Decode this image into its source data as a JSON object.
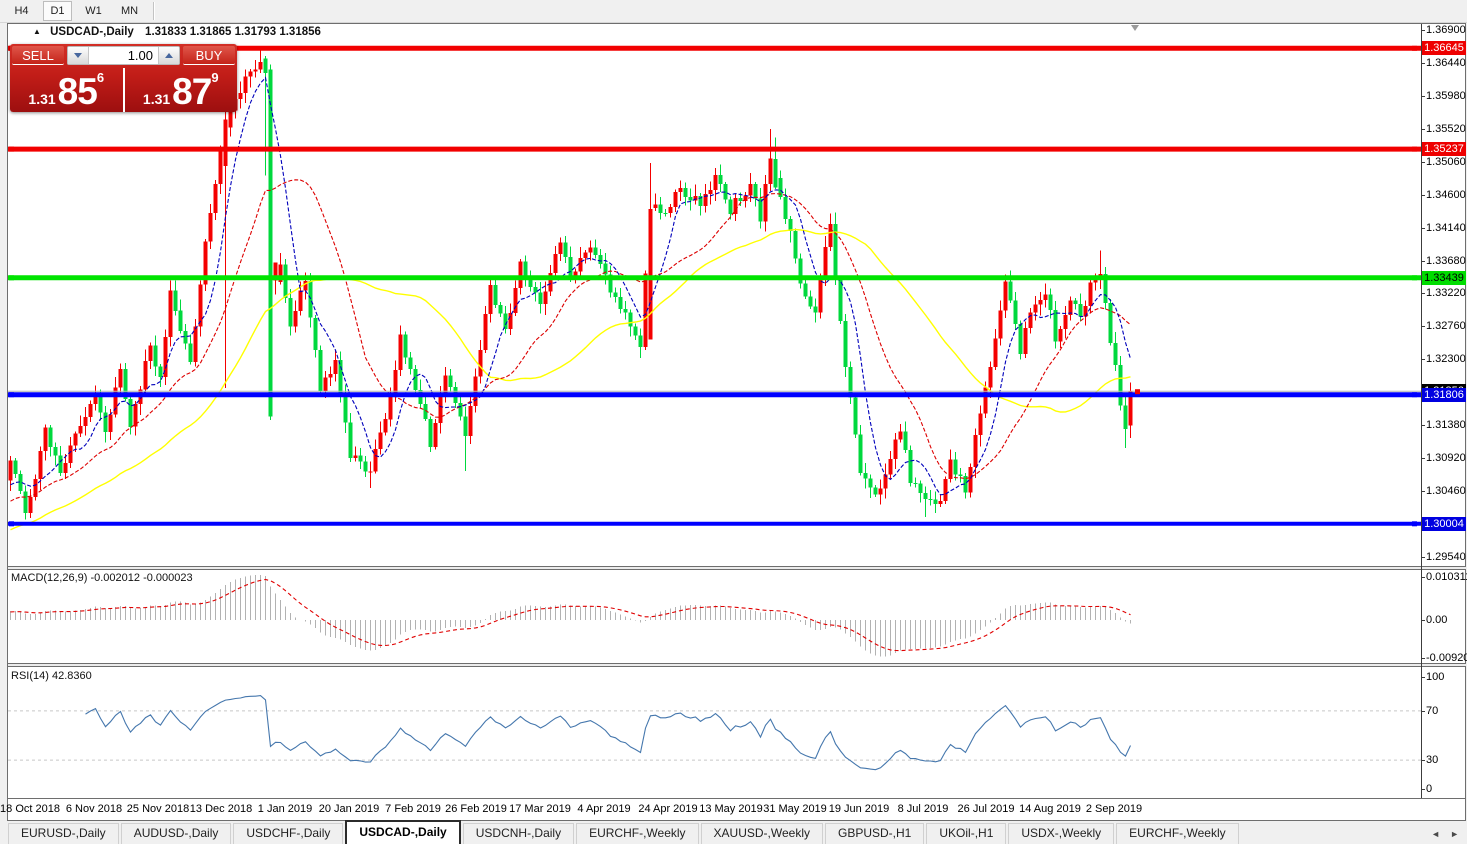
{
  "toolbar": {
    "timeframes": [
      "H4",
      "D1",
      "W1",
      "MN"
    ],
    "active": "D1"
  },
  "title": {
    "collapse_icon": "▲",
    "symbol_period": "USDCAD-,Daily",
    "ohlc": "1.31833 1.31865 1.31793 1.31856"
  },
  "trade_panel": {
    "sell_label": "SELL",
    "buy_label": "BUY",
    "volume": "1.00",
    "sell_price": {
      "prefix": "1.31",
      "big": "85",
      "sup": "6"
    },
    "buy_price": {
      "prefix": "1.31",
      "big": "87",
      "sup": "9"
    }
  },
  "price_axis": {
    "ticks": [
      "1.36900",
      "1.36440",
      "1.35980",
      "1.35520",
      "1.35060",
      "1.34600",
      "1.34140",
      "1.33680",
      "1.33220",
      "1.32760",
      "1.32300",
      "1.31380",
      "1.30920",
      "1.30460",
      "1.29540"
    ],
    "badges": [
      {
        "label": "1.36645",
        "bg": "#ee0000",
        "fg": "#ffffff",
        "price": 1.36645
      },
      {
        "label": "1.35237",
        "bg": "#ee0000",
        "fg": "#ffffff",
        "price": 1.35237
      },
      {
        "label": "1.33439",
        "bg": "#00dd00",
        "fg": "#000000",
        "price": 1.33439
      },
      {
        "label": "1.31856",
        "bg": "#000000",
        "fg": "#ffffff",
        "price": 1.31856,
        "behind": true
      },
      {
        "label": "1.31806",
        "bg": "#0000e0",
        "fg": "#ffffff",
        "price": 1.31806
      },
      {
        "label": "1.30004",
        "bg": "#0000e0",
        "fg": "#ffffff",
        "price": 1.30004
      }
    ]
  },
  "chart": {
    "bar_count": 225,
    "colors": {
      "up": "#f40000",
      "down": "#00d83e",
      "ma_fast": "#0000bb",
      "ma_mid": "#dd0000",
      "ma_slow": "#ffff00",
      "hline_red": "#f20000",
      "hline_green": "#00e400",
      "hline_blue": "#0000ff",
      "bid_line": "#b4b4b4",
      "macd_hist": "#b2b2b2",
      "macd_signal": "#e00000",
      "rsi_line": "#4577ad",
      "level_dash": "#c8c8c8",
      "shift_marker": "#9a9a9a"
    },
    "ma_periods": {
      "fast": 7,
      "mid": 20,
      "slow": 45
    },
    "keyframes": [
      [
        0,
        1.3095
      ],
      [
        3,
        1.301
      ],
      [
        7,
        1.313
      ],
      [
        10,
        1.307
      ],
      [
        17,
        1.3185
      ],
      [
        19,
        1.313
      ],
      [
        22,
        1.322
      ],
      [
        24,
        1.314
      ],
      [
        28,
        1.325
      ],
      [
        30,
        1.32
      ],
      [
        32,
        1.332
      ],
      [
        36,
        1.3225
      ],
      [
        39,
        1.34
      ],
      [
        43,
        1.356
      ],
      [
        47,
        1.362
      ],
      [
        50,
        1.365
      ],
      [
        52,
        1.333
      ],
      [
        54,
        1.336
      ],
      [
        56,
        1.327
      ],
      [
        59,
        1.3345
      ],
      [
        62,
        1.319
      ],
      [
        65,
        1.323
      ],
      [
        68,
        1.3095
      ],
      [
        72,
        1.307
      ],
      [
        76,
        1.318
      ],
      [
        78,
        1.3265
      ],
      [
        81,
        1.319
      ],
      [
        84,
        1.3115
      ],
      [
        87,
        1.3215
      ],
      [
        91,
        1.3125
      ],
      [
        96,
        1.333
      ],
      [
        99,
        1.3265
      ],
      [
        102,
        1.3365
      ],
      [
        106,
        1.33
      ],
      [
        110,
        1.34
      ],
      [
        112,
        1.334
      ],
      [
        116,
        1.339
      ],
      [
        120,
        1.333
      ],
      [
        123,
        1.329
      ],
      [
        126,
        1.325
      ],
      [
        128,
        1.344
      ],
      [
        131,
        1.344
      ],
      [
        134,
        1.347
      ],
      [
        138,
        1.3445
      ],
      [
        141,
        1.3485
      ],
      [
        144,
        1.344
      ],
      [
        148,
        1.3475
      ],
      [
        150,
        1.343
      ],
      [
        152,
        1.351
      ],
      [
        156,
        1.3405
      ],
      [
        158,
        1.333
      ],
      [
        161,
        1.33
      ],
      [
        164,
        1.342
      ],
      [
        166,
        1.328
      ],
      [
        168,
        1.317
      ],
      [
        170,
        1.307
      ],
      [
        172,
        1.3048
      ],
      [
        174,
        1.3042
      ],
      [
        176,
        1.309
      ],
      [
        178,
        1.3132
      ],
      [
        180,
        1.3062
      ],
      [
        183,
        1.3028
      ],
      [
        186,
        1.3028
      ],
      [
        188,
        1.309
      ],
      [
        191,
        1.3048
      ],
      [
        194,
        1.316
      ],
      [
        196,
        1.322
      ],
      [
        199,
        1.3335
      ],
      [
        202,
        1.3245
      ],
      [
        204,
        1.3295
      ],
      [
        207,
        1.3325
      ],
      [
        209,
        1.326
      ],
      [
        212,
        1.331
      ],
      [
        214,
        1.329
      ],
      [
        216,
        1.333
      ],
      [
        218,
        1.3355
      ],
      [
        220,
        1.326
      ],
      [
        222,
        1.317
      ],
      [
        223,
        1.3135
      ],
      [
        224,
        1.31856
      ]
    ],
    "overrides": [
      {
        "i": 43,
        "o": 1.35,
        "h": 1.3658,
        "l": 1.319,
        "c": 1.3565
      },
      {
        "i": 50,
        "h": 1.36645
      },
      {
        "i": 51,
        "o": 1.365,
        "c": 1.363
      },
      {
        "i": 52,
        "o": 1.3635,
        "h": 1.3642,
        "l": 1.3145,
        "c": 1.315,
        "mc": 1.333
      },
      {
        "i": 53,
        "o": 1.334,
        "c": 1.3365
      },
      {
        "i": 72,
        "l": 1.305
      },
      {
        "i": 91,
        "l": 1.3074
      },
      {
        "i": 128,
        "o": 1.3258,
        "c": 1.344,
        "h": 1.3504
      },
      {
        "i": 152,
        "h": 1.3552
      },
      {
        "i": 153,
        "o": 1.351,
        "c": 1.347,
        "h": 1.354
      },
      {
        "i": 183,
        "l": 1.301
      },
      {
        "i": 218,
        "h": 1.3382
      },
      {
        "i": 223,
        "l": 1.3106
      },
      {
        "i": 224,
        "o": 1.3138,
        "c": 1.31856,
        "h": 1.3198,
        "l": 1.312
      }
    ],
    "hlines": [
      {
        "price": 1.36645,
        "color": "#f20000",
        "w": 5
      },
      {
        "price": 1.35237,
        "color": "#f20000",
        "w": 5
      },
      {
        "price": 1.33439,
        "color": "#00e400",
        "w": 5
      },
      {
        "price": 1.31806,
        "color": "#0000ff",
        "w": 5
      },
      {
        "price": 1.30004,
        "color": "#0000ff",
        "w": 4
      },
      {
        "price": 1.31856,
        "color": "#b4b4b4",
        "w": 1,
        "nohandle": true
      }
    ],
    "current_price": 1.31856
  },
  "macd_panel": {
    "label": "MACD(12,26,9) -0.002012 -0.000023",
    "fast": 12,
    "slow": 26,
    "signal": 9,
    "axis": [
      "0.010311",
      "0.00",
      "-0.009203"
    ]
  },
  "rsi_panel": {
    "label": "RSI(14) 42.8360",
    "period": 14,
    "levels": [
      "100",
      "70",
      "30",
      "0"
    ]
  },
  "date_axis": {
    "labels": [
      "18 Oct 2018",
      "6 Nov 2018",
      "25 Nov 2018",
      "13 Dec 2018",
      "1 Jan 2019",
      "20 Jan 2019",
      "7 Feb 2019",
      "26 Feb 2019",
      "17 Mar 2019",
      "4 Apr 2019",
      "24 Apr 2019",
      "13 May 2019",
      "31 May 2019",
      "19 Jun 2019",
      "8 Jul 2019",
      "26 Jul 2019",
      "14 Aug 2019",
      "2 Sep 2019"
    ]
  },
  "tabs": {
    "items": [
      "EURUSD-,Daily",
      "AUDUSD-,Daily",
      "USDCHF-,Daily",
      "USDCAD-,Daily",
      "USDCNH-,Daily",
      "EURCHF-,Weekly",
      "XAUUSD-,Weekly",
      "GBPUSD-,H1",
      "UKOil-,H1",
      "USDX-,Weekly",
      "EURCHF-,Weekly"
    ],
    "active_index": 3
  }
}
